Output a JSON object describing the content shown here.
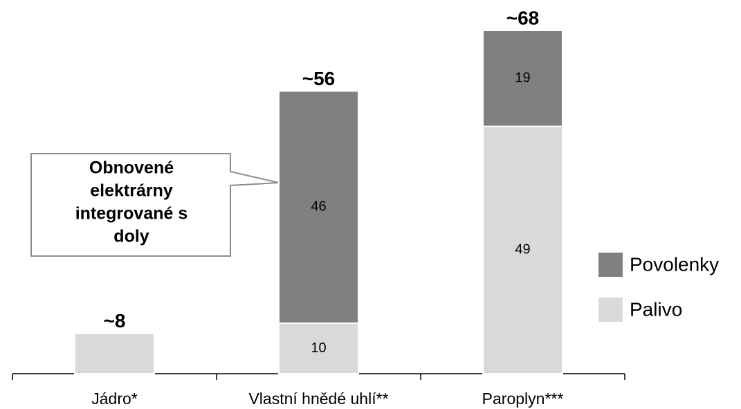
{
  "chart_data": {
    "type": "stacked_bar",
    "categories": [
      "Jádro*",
      "Vlastní hnědé uhlí**",
      "Paroplyn***"
    ],
    "series": [
      {
        "name": "Palivo",
        "color": "#d9d9d9",
        "values": [
          8,
          10,
          49
        ],
        "value_labels": [
          null,
          "10",
          "49"
        ]
      },
      {
        "name": "Povolenky",
        "color": "#808080",
        "values": [
          null,
          46,
          19
        ],
        "value_labels": [
          null,
          "46",
          "19"
        ]
      }
    ],
    "total_labels": [
      "~8",
      "~56",
      "~68"
    ],
    "annotation": {
      "lines": [
        "Obnovené",
        "elektrárny",
        "integrované s",
        "doly"
      ]
    },
    "legend": "right"
  }
}
